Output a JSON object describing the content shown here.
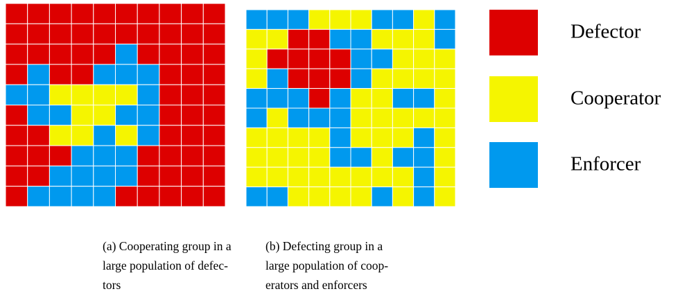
{
  "legend": [
    {
      "label": "Defector",
      "color": "#dd0000"
    },
    {
      "label": "Cooperator",
      "color": "#f5f500"
    },
    {
      "label": "Enforcer",
      "color": "#0099ee"
    }
  ],
  "panels": [
    {
      "caption": [
        "(a) Cooperating group in a",
        "large population of defec-",
        "tors"
      ],
      "grid": [
        [
          "Defector",
          "Defector",
          "Defector",
          "Defector",
          "Defector",
          "Defector",
          "Defector",
          "Defector",
          "Defector",
          "Defector"
        ],
        [
          "Defector",
          "Defector",
          "Defector",
          "Defector",
          "Defector",
          "Defector",
          "Defector",
          "Defector",
          "Defector",
          "Defector"
        ],
        [
          "Defector",
          "Defector",
          "Defector",
          "Defector",
          "Defector",
          "Enforcer",
          "Defector",
          "Defector",
          "Defector",
          "Defector"
        ],
        [
          "Defector",
          "Enforcer",
          "Defector",
          "Defector",
          "Enforcer",
          "Enforcer",
          "Enforcer",
          "Defector",
          "Defector",
          "Defector"
        ],
        [
          "Enforcer",
          "Enforcer",
          "Cooperator",
          "Cooperator",
          "Cooperator",
          "Cooperator",
          "Enforcer",
          "Defector",
          "Defector",
          "Defector"
        ],
        [
          "Defector",
          "Enforcer",
          "Enforcer",
          "Cooperator",
          "Cooperator",
          "Enforcer",
          "Enforcer",
          "Defector",
          "Defector",
          "Defector"
        ],
        [
          "Defector",
          "Defector",
          "Cooperator",
          "Cooperator",
          "Enforcer",
          "Cooperator",
          "Enforcer",
          "Defector",
          "Defector",
          "Defector"
        ],
        [
          "Defector",
          "Defector",
          "Defector",
          "Enforcer",
          "Enforcer",
          "Enforcer",
          "Defector",
          "Defector",
          "Defector",
          "Defector"
        ],
        [
          "Defector",
          "Defector",
          "Enforcer",
          "Enforcer",
          "Enforcer",
          "Enforcer",
          "Defector",
          "Defector",
          "Defector",
          "Defector"
        ],
        [
          "Defector",
          "Enforcer",
          "Enforcer",
          "Enforcer",
          "Enforcer",
          "Defector",
          "Defector",
          "Defector",
          "Defector",
          "Defector"
        ]
      ]
    },
    {
      "caption": [
        "(b) Defecting group in a",
        "large population of coop-",
        "erators and enforcers"
      ],
      "grid": [
        [
          "Enforcer",
          "Enforcer",
          "Enforcer",
          "Cooperator",
          "Cooperator",
          "Cooperator",
          "Enforcer",
          "Enforcer",
          "Cooperator",
          "Enforcer"
        ],
        [
          "Cooperator",
          "Cooperator",
          "Defector",
          "Defector",
          "Enforcer",
          "Enforcer",
          "Cooperator",
          "Cooperator",
          "Cooperator",
          "Enforcer"
        ],
        [
          "Cooperator",
          "Defector",
          "Defector",
          "Defector",
          "Defector",
          "Enforcer",
          "Enforcer",
          "Cooperator",
          "Cooperator",
          "Cooperator"
        ],
        [
          "Cooperator",
          "Enforcer",
          "Defector",
          "Defector",
          "Defector",
          "Enforcer",
          "Cooperator",
          "Cooperator",
          "Cooperator",
          "Cooperator"
        ],
        [
          "Enforcer",
          "Enforcer",
          "Enforcer",
          "Defector",
          "Enforcer",
          "Cooperator",
          "Cooperator",
          "Enforcer",
          "Enforcer",
          "Cooperator"
        ],
        [
          "Enforcer",
          "Cooperator",
          "Enforcer",
          "Enforcer",
          "Enforcer",
          "Cooperator",
          "Cooperator",
          "Cooperator",
          "Cooperator",
          "Cooperator"
        ],
        [
          "Cooperator",
          "Cooperator",
          "Cooperator",
          "Cooperator",
          "Enforcer",
          "Cooperator",
          "Cooperator",
          "Cooperator",
          "Enforcer",
          "Cooperator"
        ],
        [
          "Cooperator",
          "Cooperator",
          "Cooperator",
          "Cooperator",
          "Enforcer",
          "Enforcer",
          "Cooperator",
          "Enforcer",
          "Enforcer",
          "Cooperator"
        ],
        [
          "Cooperator",
          "Cooperator",
          "Cooperator",
          "Cooperator",
          "Cooperator",
          "Cooperator",
          "Cooperator",
          "Cooperator",
          "Enforcer",
          "Cooperator"
        ],
        [
          "Enforcer",
          "Enforcer",
          "Cooperator",
          "Cooperator",
          "Cooperator",
          "Cooperator",
          "Enforcer",
          "Cooperator",
          "Enforcer",
          "Cooperator"
        ]
      ]
    }
  ]
}
